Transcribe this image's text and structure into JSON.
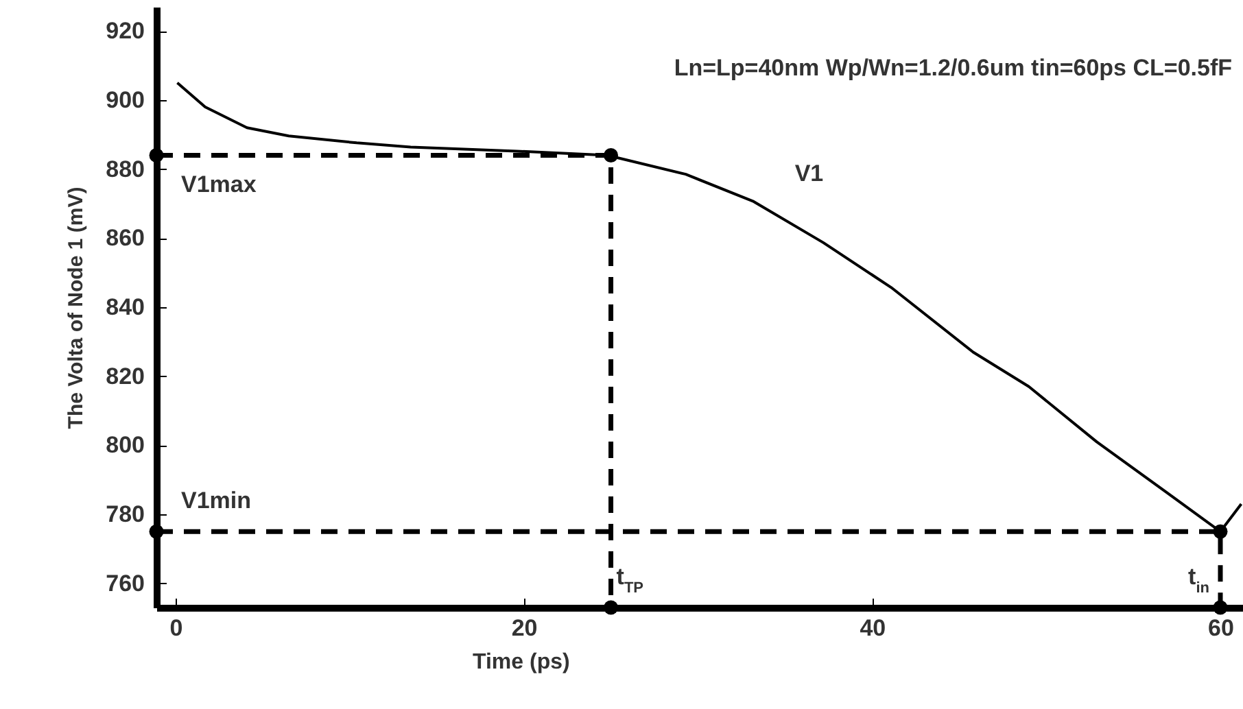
{
  "chart_data": {
    "type": "line",
    "xlabel": "Time (ps)",
    "ylabel": "The Volta of Node 1 (mV)",
    "xlim": [
      -1.1,
      61.3
    ],
    "ylim": [
      753,
      927
    ],
    "xticks": [
      0,
      20,
      40,
      60
    ],
    "yticks": [
      760,
      780,
      800,
      820,
      840,
      860,
      880,
      900,
      920
    ],
    "grid": false,
    "series": [
      {
        "color": "#000000",
        "line_style": "solid",
        "marker": "none",
        "x": [
          0.1,
          1.7,
          4.1,
          6.5,
          10.4,
          13.5,
          19.6,
          24.8,
          29.3,
          33.2,
          37.2,
          41.1,
          45.8,
          49,
          52.9,
          56.9,
          60,
          61.2
        ],
        "values": [
          905,
          898,
          892,
          889.6,
          887.6,
          886.4,
          885.2,
          884,
          878.5,
          870.6,
          858.7,
          845.7,
          827,
          817,
          801,
          786.4,
          775,
          783
        ]
      },
      {
        "color": "#000000",
        "line_style": "dashed",
        "marker": "circle",
        "x": [
          -1.1,
          25,
          25
        ],
        "values": [
          884,
          884,
          753
        ]
      },
      {
        "color": "#000000",
        "line_style": "dashed",
        "marker": "circle",
        "x": [
          -1.1,
          60,
          60
        ],
        "values": [
          775,
          775,
          753
        ]
      }
    ],
    "annotations": [
      "Ln=Lp=40nm Wp/Wn=1.2/0.6um tin=60ps CL=0.5fF",
      {
        "text": "V1max",
        "x": -1.1,
        "y": 884
      },
      {
        "text": "V1min",
        "x": -1.1,
        "y": 775
      },
      {
        "text": "V1",
        "x": 33.2,
        "y": 870.6
      },
      {
        "text": "t$_{TP}$",
        "x": 25,
        "y": 753
      },
      {
        "text": "t$_{in}$",
        "x": 60,
        "y": 753
      }
    ]
  }
}
